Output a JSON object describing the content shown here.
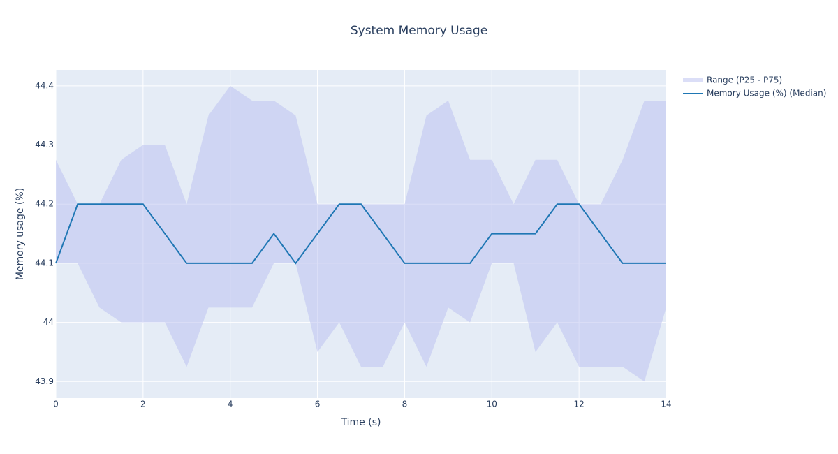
{
  "chart_data": {
    "type": "line-band",
    "title": "System Memory Usage",
    "x_label": "Time (s)",
    "y_label": "Memory usage (%)",
    "x": [
      0,
      0.5,
      1,
      1.5,
      2,
      2.5,
      3,
      3.5,
      4,
      4.5,
      5,
      5.5,
      6,
      6.5,
      7,
      7.5,
      8,
      8.5,
      9,
      9.5,
      10,
      10.5,
      11,
      11.5,
      12,
      12.5,
      13,
      13.5,
      14
    ],
    "series": [
      {
        "name": "Range (P25 - P75)",
        "color": "rgba(190,195,240,0.55)",
        "lower": [
          44.1,
          44.1,
          44.025,
          44.0,
          44.0,
          44.0,
          43.925,
          44.025,
          44.025,
          44.025,
          44.1,
          44.1,
          43.95,
          44.0,
          43.925,
          43.925,
          44.0,
          43.925,
          44.025,
          44.0,
          44.1,
          44.1,
          43.95,
          44.0,
          43.925,
          43.925,
          43.925,
          43.9,
          44.025
        ],
        "upper": [
          44.275,
          44.2,
          44.2,
          44.275,
          44.3,
          44.3,
          44.2,
          44.35,
          44.4,
          44.375,
          44.375,
          44.35,
          44.2,
          44.2,
          44.2,
          44.2,
          44.2,
          44.35,
          44.375,
          44.275,
          44.275,
          44.2,
          44.275,
          44.275,
          44.2,
          44.2,
          44.275,
          44.375,
          44.375
        ]
      },
      {
        "name": "Memory Usage (%) (Median)",
        "color": "#1f77b4",
        "values": [
          44.1,
          44.2,
          44.2,
          44.2,
          44.2,
          44.15,
          44.1,
          44.1,
          44.1,
          44.1,
          44.15,
          44.1,
          44.15,
          44.2,
          44.2,
          44.15,
          44.1,
          44.1,
          44.1,
          44.1,
          44.15,
          44.15,
          44.15,
          44.2,
          44.2,
          44.15,
          44.1,
          44.1,
          44.1
        ]
      }
    ],
    "xlim": [
      0,
      14
    ],
    "xticks": [
      0,
      2,
      4,
      6,
      8,
      10,
      12,
      14
    ],
    "ylim": [
      43.872,
      44.427
    ],
    "yticks": [
      43.9,
      44,
      44.1,
      44.2,
      44.3,
      44.4
    ],
    "grid": true
  }
}
